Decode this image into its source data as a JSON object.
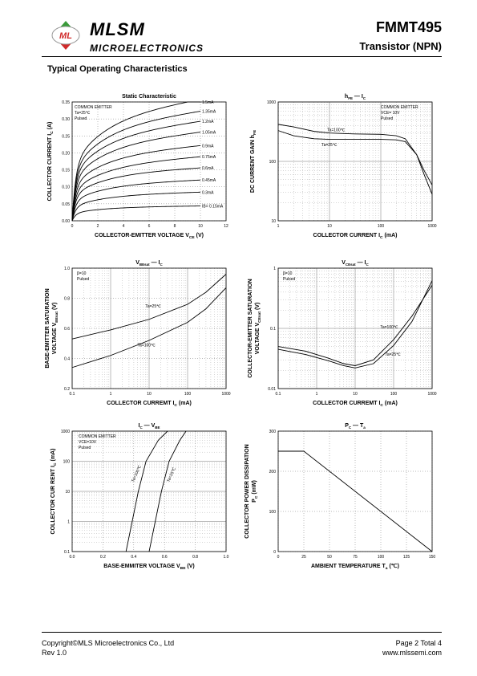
{
  "header": {
    "brand": "MLSM",
    "brand_sub": "MICROELECTRONICS",
    "logo_letters": "ML",
    "part_number": "FMMT495",
    "part_type": "Transistor  (NPN)",
    "colors": {
      "logo_green": "#3a9b3a",
      "logo_red": "#d02a2a"
    }
  },
  "section_title": "Typical Operating Characteristics",
  "footer": {
    "copyright": "Copyright©MLS Microelectronics Co., Ltd",
    "revision": "Rev 1.0",
    "page": "Page 2 Total 4",
    "website": "www.mlssemi.com"
  },
  "chart_data": [
    {
      "type": "line",
      "title": "Static Characteristic",
      "xlabel": "COLLECTOR-EMITTER VOLTAGE V",
      "xlabel_sub": "CE",
      "xlabel_unit": " (V)",
      "ylabel": "COLLECTOR CURRENT  I",
      "ylabel_sub": "C",
      "ylabel_unit": " (A)",
      "xlim": [
        0,
        12
      ],
      "ylim": [
        0,
        0.35
      ],
      "xticks": [
        "0",
        "2",
        "4",
        "6",
        "8",
        "10",
        "12"
      ],
      "yticks": [
        "0.00",
        "0.05",
        "0.10",
        "0.15",
        "0.20",
        "0.25",
        "0.30",
        "0.35"
      ],
      "legend_lines": [
        "COMMON EMITTER",
        "Ta=25℃",
        "Pulsed"
      ],
      "series": [
        {
          "name": "1.5mA",
          "sat": 0.295,
          "slope": 0.0065
        },
        {
          "name": "1.35mA",
          "sat": 0.27,
          "slope": 0.0055
        },
        {
          "name": "1.2mA",
          "sat": 0.245,
          "slope": 0.005
        },
        {
          "name": "1.05mA",
          "sat": 0.218,
          "slope": 0.0045
        },
        {
          "name": "0.9mA",
          "sat": 0.188,
          "slope": 0.0035
        },
        {
          "name": "0.75mA",
          "sat": 0.16,
          "slope": 0.003
        },
        {
          "name": "0.6mA",
          "sat": 0.135,
          "slope": 0.0022
        },
        {
          "name": "0.45mA",
          "sat": 0.105,
          "slope": 0.0016
        },
        {
          "name": "0.3mA",
          "sat": 0.075,
          "slope": 0.001
        },
        {
          "name": "IB= 0.15mA",
          "sat": 0.04,
          "slope": 0.0004
        }
      ]
    },
    {
      "type": "line",
      "title": "hFE — IC",
      "xlabel": "COLLECTOR CURRENT  I",
      "xlabel_sub": "C",
      "xlabel_unit": "  (mA)",
      "ylabel": "DC CURRENT GAIN   h",
      "ylabel_sub": "FE",
      "ylabel_unit": "",
      "log": true,
      "xlim": [
        1,
        1000
      ],
      "ylim": [
        10,
        1000
      ],
      "xticks": [
        "1",
        "10",
        "100",
        "1000"
      ],
      "yticks": [
        "10",
        "100",
        "1000"
      ],
      "legend_lines": [
        "COMMON EMITTER",
        "VCE= 10V",
        "Pulsed"
      ],
      "series": [
        {
          "name": "Ta=100℃",
          "points": [
            [
              1,
              420
            ],
            [
              2,
              380
            ],
            [
              5,
              320
            ],
            [
              10,
              300
            ],
            [
              30,
              290
            ],
            [
              100,
              285
            ],
            [
              200,
              270
            ],
            [
              300,
              240
            ],
            [
              500,
              130
            ],
            [
              700,
              70
            ],
            [
              1000,
              40
            ]
          ]
        },
        {
          "name": "Ta=25℃",
          "points": [
            [
              1,
              330
            ],
            [
              2,
              270
            ],
            [
              5,
              240
            ],
            [
              10,
              235
            ],
            [
              30,
              235
            ],
            [
              100,
              235
            ],
            [
              200,
              230
            ],
            [
              300,
              215
            ],
            [
              500,
              130
            ],
            [
              700,
              60
            ],
            [
              1000,
              28
            ]
          ]
        }
      ]
    },
    {
      "type": "line",
      "title": "VBEsat — IC",
      "xlabel": "COLLECTOR CURREMT  I",
      "xlabel_sub": "C",
      "xlabel_unit": " (mA)",
      "ylabel": "BASE-EMITTER SATURATION",
      "ylabel2": "VOLTAGE   V",
      "ylabel_sub": "BEsat",
      "ylabel_unit": "  (V)",
      "log_x": true,
      "xlim": [
        0.1,
        1000
      ],
      "ylim": [
        0.2,
        1.0
      ],
      "xticks": [
        "0.1",
        "1",
        "10",
        "100",
        "1000"
      ],
      "yticks": [
        "0.2",
        "0.4",
        "0.6",
        "0.8",
        "1.0"
      ],
      "legend_lines": [
        "β=10",
        "Pulsed"
      ],
      "series": [
        {
          "name": "Ta=25℃",
          "points": [
            [
              0.1,
              0.53
            ],
            [
              1,
              0.59
            ],
            [
              10,
              0.66
            ],
            [
              100,
              0.76
            ],
            [
              300,
              0.84
            ],
            [
              1000,
              0.96
            ]
          ]
        },
        {
          "name": "Ta=100℃",
          "points": [
            [
              0.1,
              0.34
            ],
            [
              1,
              0.42
            ],
            [
              10,
              0.52
            ],
            [
              100,
              0.64
            ],
            [
              300,
              0.73
            ],
            [
              1000,
              0.87
            ]
          ]
        }
      ]
    },
    {
      "type": "line",
      "title": "VCEsat — IC",
      "xlabel": "COLLECTOR CURREMT  I",
      "xlabel_sub": "C",
      "xlabel_unit": " (mA)",
      "ylabel": "COLLECTOR-EMITTER SATURATION",
      "ylabel2": "VOLTAGE   V",
      "ylabel_sub": "CEsat",
      "ylabel_unit": "   (V)",
      "log": true,
      "xlim": [
        0.1,
        1000
      ],
      "ylim": [
        0.01,
        1
      ],
      "xticks": [
        "0.1",
        "1",
        "10",
        "100",
        "1000"
      ],
      "yticks": [
        "0.01",
        "0.1",
        "1"
      ],
      "legend_lines": [
        "β=10",
        "Pulsed"
      ],
      "series": [
        {
          "name": "Ta=100℃",
          "points": [
            [
              0.1,
              0.05
            ],
            [
              0.5,
              0.042
            ],
            [
              2,
              0.032
            ],
            [
              5,
              0.026
            ],
            [
              10,
              0.024
            ],
            [
              30,
              0.03
            ],
            [
              100,
              0.065
            ],
            [
              300,
              0.16
            ],
            [
              1000,
              0.52
            ]
          ]
        },
        {
          "name": "Ta=25℃",
          "points": [
            [
              0.1,
              0.045
            ],
            [
              0.5,
              0.037
            ],
            [
              2,
              0.029
            ],
            [
              5,
              0.024
            ],
            [
              10,
              0.022
            ],
            [
              30,
              0.026
            ],
            [
              100,
              0.052
            ],
            [
              300,
              0.13
            ],
            [
              1000,
              0.62
            ]
          ]
        }
      ]
    },
    {
      "type": "line",
      "title": "IC — VBE",
      "xlabel": "BASE-EMMITER VOLTAGE   V",
      "xlabel_sub": "BE",
      "xlabel_unit": "   (V)",
      "ylabel": "COLLECTOR CUR RENT   I",
      "ylabel_sub": "C",
      "ylabel_unit": "  (mA)",
      "log_y": true,
      "xlim": [
        0,
        1.0
      ],
      "ylim": [
        0.1,
        1000
      ],
      "xticks": [
        "0.0",
        "0.2",
        "0.4",
        "0.6",
        "0.8",
        "1.0"
      ],
      "yticks": [
        "0.1",
        "1",
        "10",
        "100",
        "1000"
      ],
      "legend_lines": [
        "COMMON EMITTER",
        "VCE=10V",
        "Pulsed"
      ],
      "series": [
        {
          "name": "Ta=100℃",
          "points": [
            [
              0.35,
              0.1
            ],
            [
              0.39,
              1
            ],
            [
              0.43,
              10
            ],
            [
              0.48,
              100
            ],
            [
              0.56,
              500
            ],
            [
              0.62,
              1000
            ]
          ]
        },
        {
          "name": "Ta=25℃",
          "points": [
            [
              0.5,
              0.1
            ],
            [
              0.54,
              1
            ],
            [
              0.58,
              10
            ],
            [
              0.63,
              100
            ],
            [
              0.7,
              500
            ],
            [
              0.74,
              1000
            ]
          ]
        }
      ]
    },
    {
      "type": "line",
      "title": "PC — Ta",
      "xlabel": "AMBIENT TEMPERATURE   T",
      "xlabel_sub": "a",
      "xlabel_unit": "  (℃)",
      "ylabel": "COLLECTOR POWER DISSIPATION",
      "ylabel2": "P",
      "ylabel_sub": "C",
      "ylabel_unit": "  (mW)",
      "xlim": [
        0,
        150
      ],
      "ylim": [
        0,
        300
      ],
      "xticks": [
        "0",
        "25",
        "50",
        "75",
        "100",
        "125",
        "150"
      ],
      "yticks": [
        "0",
        "100",
        "200",
        "300"
      ],
      "series": [
        {
          "name": "PC",
          "points": [
            [
              0,
              250
            ],
            [
              25,
              250
            ],
            [
              150,
              0
            ]
          ]
        }
      ]
    }
  ]
}
